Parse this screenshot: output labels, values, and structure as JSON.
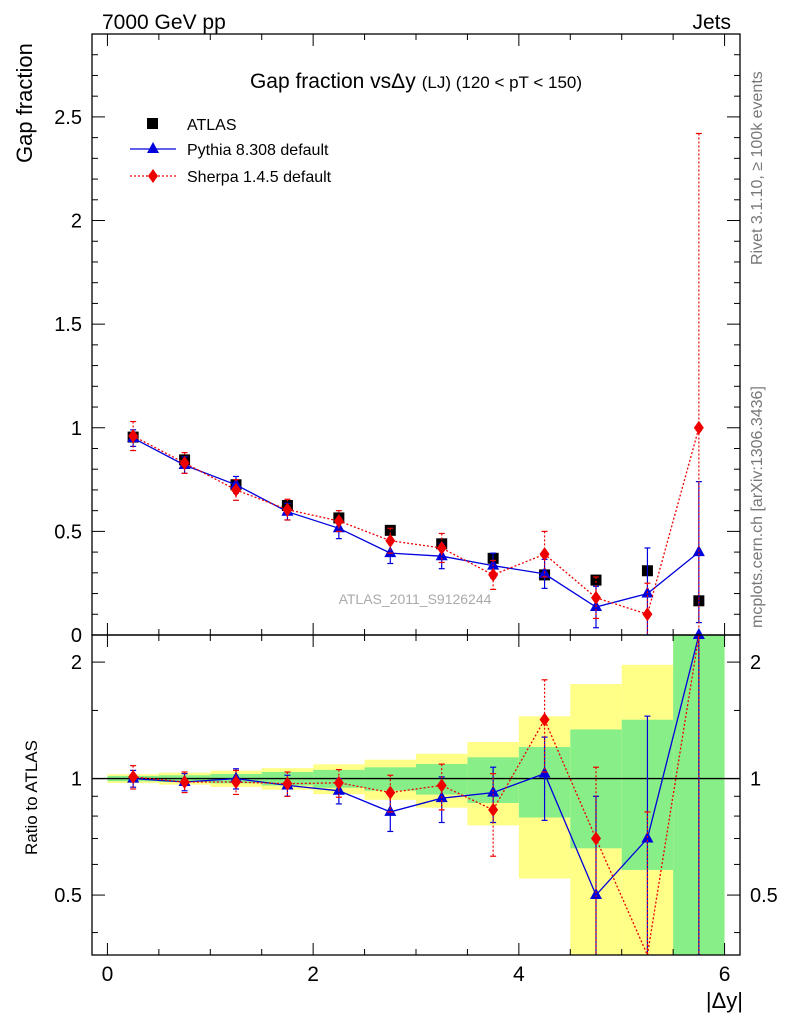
{
  "header": {
    "left": "7000 GeV pp",
    "right": "Jets",
    "rivet": "Rivet 3.1.10, ≥ 100k events",
    "mcplots": "mcplots.cern.ch [arXiv:1306.3436]",
    "watermark": "ATLAS_2011_S9126244"
  },
  "chart_data": {
    "type": "scatter",
    "title": "Gap fraction vsΔy (LJ) (120 < pT < 150)",
    "title_main": "Gap fraction vs",
    "title_symbol": "Δy",
    "title_sub": "(LJ) (120 < pT < 150)",
    "xlabel": "|Δy|",
    "ylabel": "Gap fraction",
    "ylabel_ratio": "Ratio to ATLAS",
    "xlim": [
      -0.15,
      6.15
    ],
    "ylim_main": [
      0,
      2.9
    ],
    "ylim_ratio": [
      0.35,
      2.35
    ],
    "xticks": [
      0,
      2,
      4,
      6
    ],
    "xticklabels": [
      "0",
      "2",
      "4",
      "6"
    ],
    "yticks_main": [
      0,
      0.5,
      1,
      1.5,
      2,
      2.5
    ],
    "yticklabels_main": [
      "0",
      "0.5",
      "1",
      "1.5",
      "2",
      "2.5"
    ],
    "yticks_ratio": [
      0.5,
      1,
      2
    ],
    "yticklabels_ratio": [
      "0.5",
      "1",
      "2"
    ],
    "x": [
      0.25,
      0.75,
      1.25,
      1.75,
      2.25,
      2.75,
      3.25,
      3.75,
      4.25,
      4.75,
      5.25,
      5.75
    ],
    "bin_edges": [
      0,
      0.5,
      1,
      1.5,
      2,
      2.5,
      3,
      3.5,
      4,
      4.5,
      5,
      5.5,
      6
    ],
    "legend": {
      "position": "top-left",
      "entries": [
        "ATLAS",
        "Pythia 8.308 default",
        "Sherpa 1.4.5 default"
      ]
    },
    "series": [
      {
        "name": "ATLAS",
        "color": "#000000",
        "marker": "square",
        "values": [
          0.955,
          0.845,
          0.725,
          0.625,
          0.565,
          0.505,
          0.44,
          0.37,
          0.29,
          0.265,
          0.31,
          0.165
        ],
        "band_green": [
          0.015,
          0.017,
          0.02,
          0.025,
          0.03,
          0.035,
          0.04,
          0.05,
          0.06,
          0.09,
          0.13,
          0.5
        ],
        "band_yellow": [
          0.025,
          0.03,
          0.035,
          0.04,
          0.05,
          0.06,
          0.07,
          0.09,
          0.13,
          0.2,
          0.3,
          0.9
        ]
      },
      {
        "name": "Pythia 8.308 default",
        "color": "#0000dd",
        "marker": "triangle",
        "values": [
          0.95,
          0.82,
          0.725,
          0.595,
          0.515,
          0.395,
          0.38,
          0.335,
          0.295,
          0.135,
          0.2,
          0.4
        ],
        "errors": [
          0.04,
          0.04,
          0.04,
          0.04,
          0.05,
          0.05,
          0.06,
          0.06,
          0.07,
          0.1,
          0.22,
          0.34
        ],
        "ratio": [
          1.0,
          0.98,
          1.0,
          0.96,
          0.93,
          0.82,
          0.89,
          0.92,
          1.03,
          0.5,
          0.7,
          2.35
        ],
        "ratio_errors": [
          0.05,
          0.05,
          0.06,
          0.06,
          0.07,
          0.09,
          0.12,
          0.15,
          0.25,
          0.4,
          0.75,
          2.0
        ]
      },
      {
        "name": "Sherpa 1.4.5 default",
        "color": "#ee0000",
        "marker": "diamond",
        "values": [
          0.96,
          0.83,
          0.7,
          0.605,
          0.55,
          0.455,
          0.42,
          0.29,
          0.39,
          0.18,
          0.1,
          1.0
        ],
        "errors": [
          0.07,
          0.05,
          0.05,
          0.05,
          0.05,
          0.06,
          0.07,
          0.07,
          0.11,
          0.1,
          0.15,
          1.42
        ],
        "ratio": [
          1.01,
          0.98,
          0.98,
          0.97,
          0.975,
          0.92,
          0.96,
          0.83,
          1.42,
          0.7,
          0.32,
          6.06
        ],
        "ratio_errors": [
          0.07,
          0.06,
          0.07,
          0.07,
          0.08,
          0.1,
          0.13,
          0.2,
          0.38,
          0.37,
          0.5,
          8.6
        ]
      }
    ]
  }
}
